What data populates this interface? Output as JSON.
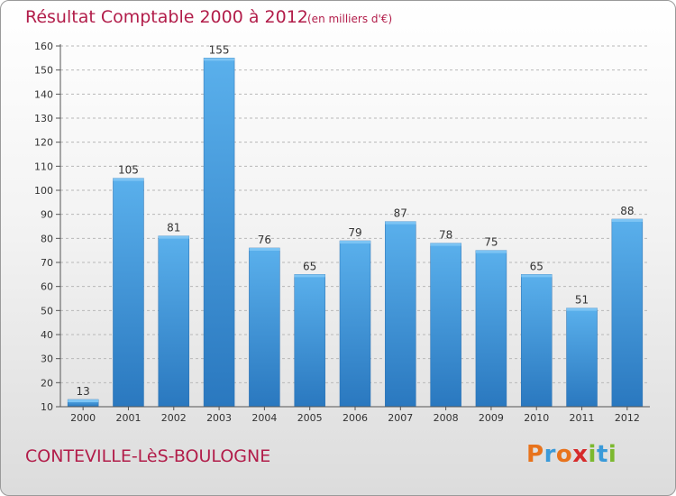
{
  "chart_data": {
    "type": "bar",
    "title": "Résultat Comptable 2000 à 2012",
    "subtitle": "(en milliers d'€)",
    "categories": [
      "2000",
      "2001",
      "2002",
      "2003",
      "2004",
      "2005",
      "2006",
      "2007",
      "2008",
      "2009",
      "2010",
      "2011",
      "2012"
    ],
    "values": [
      13,
      105,
      81,
      155,
      76,
      65,
      79,
      87,
      78,
      75,
      65,
      51,
      88
    ],
    "ylim": [
      10,
      160
    ],
    "yticks": [
      10,
      20,
      30,
      40,
      50,
      60,
      70,
      80,
      90,
      100,
      110,
      120,
      130,
      140,
      150,
      160
    ],
    "xlabel": "",
    "ylabel": "",
    "grid": true,
    "bar_color": "#3a8fd4"
  },
  "footer": {
    "town": "CONTEVILLE-LèS-BOULOGNE"
  },
  "logo": {
    "letters": [
      "P",
      "r",
      "o",
      "x",
      "i",
      "t",
      "i"
    ],
    "colors": [
      "#e8731c",
      "#3a9ad9",
      "#e8731c",
      "#d62b2b",
      "#7cb82f",
      "#3a9ad9",
      "#7cb82f"
    ]
  }
}
